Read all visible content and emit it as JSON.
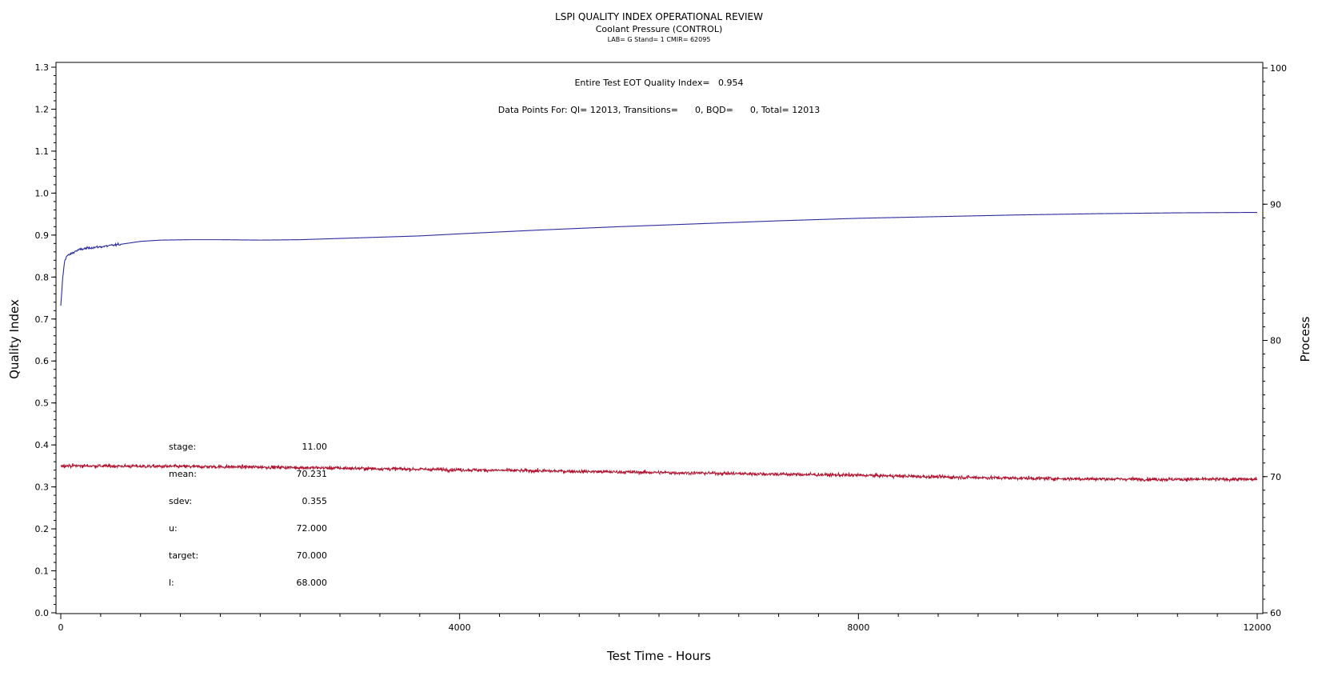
{
  "chart_data": {
    "type": "line",
    "title": "LSPI QUALITY INDEX OPERATIONAL REVIEW",
    "subtitle": "Coolant Pressure (CONTROL)",
    "subsubtitle": "LAB= G Stand= 1 CMIR= 62095",
    "xlabel": "Test Time - Hours",
    "ylabel_left": "Quality Index",
    "ylabel_right": "Process",
    "xlim": [
      0,
      12000
    ],
    "ylim_left": [
      0,
      1.3
    ],
    "ylim_right": [
      60,
      100
    ],
    "x_ticks": [
      "0",
      "4000",
      "8000",
      "12000"
    ],
    "y_left_ticks": [
      "0.0",
      "0.1",
      "0.2",
      "0.3",
      "0.4",
      "0.5",
      "0.6",
      "0.7",
      "0.8",
      "0.9",
      "1.0",
      "1.1",
      "1.2",
      "1.3"
    ],
    "y_right_ticks": [
      "60",
      "70",
      "80",
      "90",
      "100"
    ],
    "annotations": {
      "qi_line": "Entire Test EOT Quality Index=   0.954",
      "points_line": "Data Points For: QI= 12013, Transitions=      0, BQD=      0, Total= 12013"
    },
    "stats": [
      {
        "label": "stage:",
        "value": "11.00"
      },
      {
        "label": "mean:",
        "value": "70.231"
      },
      {
        "label": "sdev:",
        "value": "0.355"
      },
      {
        "label": "u:",
        "value": "72.000"
      },
      {
        "label": "target:",
        "value": "70.000"
      },
      {
        "label": "l:",
        "value": "68.000"
      }
    ],
    "series": [
      {
        "axis": "left",
        "color": "#2b2b9e",
        "x": [
          0,
          20,
          40,
          60,
          100,
          150,
          200,
          300,
          400,
          600,
          800,
          1000,
          1300,
          1600,
          2000,
          2400,
          2800,
          3200,
          3600,
          4000,
          4800,
          5600,
          6400,
          7200,
          8000,
          8800,
          9600,
          10400,
          11200,
          12000
        ],
        "values": [
          0.73,
          0.8,
          0.84,
          0.85,
          0.855,
          0.862,
          0.866,
          0.87,
          0.872,
          0.878,
          0.885,
          0.888,
          0.889,
          0.889,
          0.888,
          0.889,
          0.892,
          0.895,
          0.898,
          0.903,
          0.912,
          0.92,
          0.927,
          0.934,
          0.94,
          0.944,
          0.948,
          0.951,
          0.953,
          0.954
        ]
      },
      {
        "axis": "right",
        "color": "#b0112e",
        "x": [
          0,
          1000,
          2000,
          3000,
          4000,
          5000,
          6000,
          7000,
          8000,
          9000,
          10000,
          11000,
          12000
        ],
        "values": [
          70.8,
          70.75,
          70.7,
          70.6,
          70.5,
          70.4,
          70.3,
          70.2,
          70.1,
          69.95,
          69.85,
          69.8,
          69.8
        ],
        "noise_sd": 0.15
      }
    ]
  }
}
